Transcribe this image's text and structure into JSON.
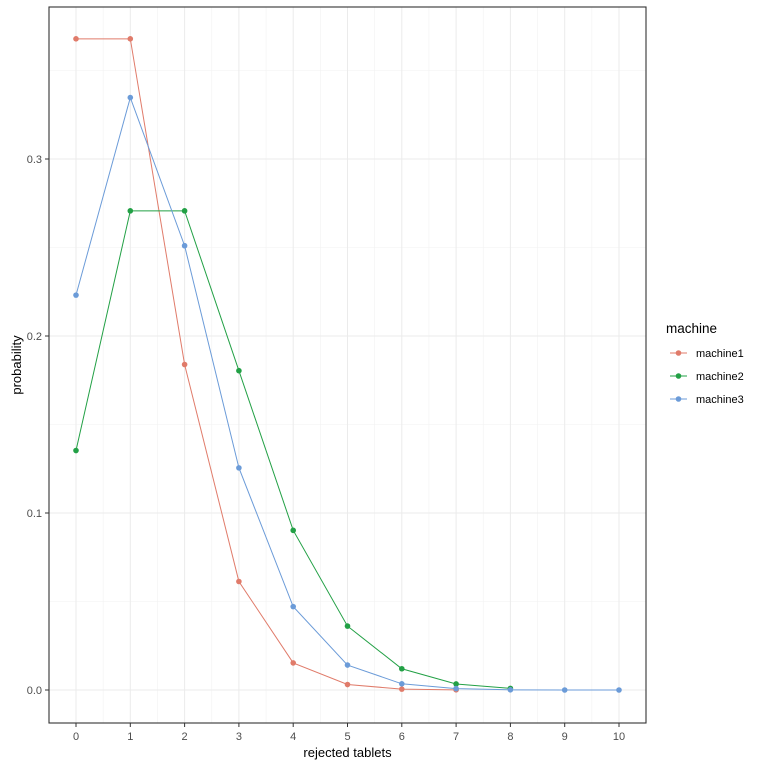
{
  "chart_data": {
    "type": "line",
    "title": "",
    "xlabel": "rejected tablets",
    "ylabel": "probability",
    "x_ticks": [
      0,
      1,
      2,
      3,
      4,
      5,
      6,
      7,
      8,
      9,
      10
    ],
    "y_ticks": [
      0.0,
      0.1,
      0.2,
      0.3
    ],
    "y_tick_labels": [
      "0.0",
      "0.1",
      "0.2",
      "0.3"
    ],
    "xlim": [
      -0.5,
      10.5
    ],
    "ylim": [
      -0.018,
      0.385
    ],
    "grid": true,
    "legend_position": "right",
    "legend_title": "machine",
    "series": [
      {
        "name": "machine1",
        "color": "#e07b6a",
        "x": [
          0,
          1,
          2,
          3,
          4,
          5,
          6,
          7
        ],
        "values": [
          0.3679,
          0.3679,
          0.1839,
          0.0613,
          0.0153,
          0.0031,
          0.0005,
          0.0001
        ]
      },
      {
        "name": "machine2",
        "color": "#22a045",
        "x": [
          0,
          1,
          2,
          3,
          4,
          5,
          6,
          7,
          8
        ],
        "values": [
          0.1353,
          0.2707,
          0.2707,
          0.1804,
          0.0902,
          0.0361,
          0.012,
          0.0034,
          0.0009
        ]
      },
      {
        "name": "machine3",
        "color": "#6b9bd8",
        "x": [
          0,
          1,
          2,
          3,
          4,
          5,
          6,
          7,
          8,
          9,
          10
        ],
        "values": [
          0.2231,
          0.3347,
          0.251,
          0.1255,
          0.0471,
          0.0141,
          0.0035,
          0.0008,
          0.0001,
          0.0,
          0.0
        ]
      }
    ]
  }
}
